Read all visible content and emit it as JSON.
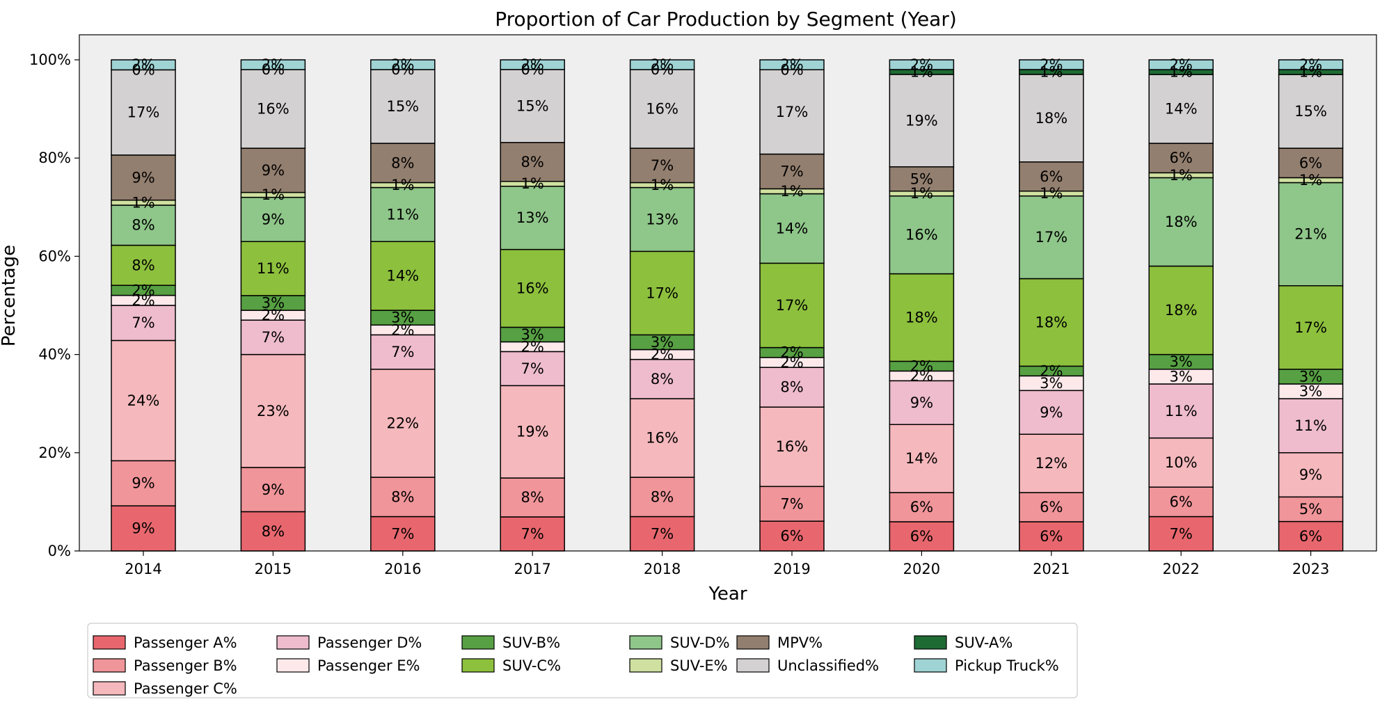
{
  "chart_data": {
    "type": "bar",
    "stacked": true,
    "title": "Proportion of Car Production by Segment (Year)",
    "xlabel": "Year",
    "ylabel": "Percentage",
    "ylim": [
      0,
      105
    ],
    "yticks": [
      "0%",
      "20%",
      "40%",
      "60%",
      "80%",
      "100%"
    ],
    "grid": false,
    "legend_position": "below",
    "categories": [
      "2014",
      "2015",
      "2016",
      "2017",
      "2018",
      "2019",
      "2020",
      "2021",
      "2022",
      "2023"
    ],
    "series": [
      {
        "name": "Passenger A%",
        "color": "#e8676e",
        "values": [
          9,
          8,
          7,
          7,
          7,
          6,
          6,
          6,
          7,
          6
        ]
      },
      {
        "name": "Passenger B%",
        "color": "#f0959a",
        "values": [
          9,
          9,
          8,
          8,
          8,
          7,
          6,
          6,
          6,
          5
        ]
      },
      {
        "name": "Passenger C%",
        "color": "#f5b8bc",
        "values": [
          24,
          23,
          22,
          19,
          16,
          16,
          14,
          12,
          10,
          9
        ]
      },
      {
        "name": "Passenger D%",
        "color": "#eebccd",
        "values": [
          7,
          7,
          7,
          7,
          8,
          8,
          9,
          9,
          11,
          11
        ]
      },
      {
        "name": "Passenger E%",
        "color": "#fde9ea",
        "values": [
          2,
          2,
          2,
          2,
          2,
          2,
          2,
          3,
          3,
          3
        ]
      },
      {
        "name": "SUV-B%",
        "color": "#57a043",
        "values": [
          2,
          3,
          3,
          3,
          3,
          2,
          2,
          2,
          3,
          3
        ]
      },
      {
        "name": "SUV-C%",
        "color": "#8dc03d",
        "values": [
          8,
          11,
          14,
          16,
          17,
          17,
          18,
          18,
          18,
          17
        ]
      },
      {
        "name": "SUV-D%",
        "color": "#8fc68a",
        "values": [
          8,
          9,
          11,
          13,
          13,
          14,
          16,
          17,
          18,
          21
        ]
      },
      {
        "name": "SUV-E%",
        "color": "#cfe0a0",
        "values": [
          1,
          1,
          1,
          1,
          1,
          1,
          1,
          1,
          1,
          1
        ]
      },
      {
        "name": "MPV%",
        "color": "#937f6f",
        "values": [
          9,
          9,
          8,
          8,
          7,
          7,
          5,
          6,
          6,
          6
        ]
      },
      {
        "name": "Unclassified%",
        "color": "#d3d1d2",
        "values": [
          17,
          16,
          15,
          15,
          16,
          17,
          19,
          18,
          14,
          15
        ]
      },
      {
        "name": "SUV-A%",
        "color": "#1e6b34",
        "values": [
          0,
          0,
          0,
          0,
          0,
          0,
          1,
          1,
          1,
          1
        ]
      },
      {
        "name": "Pickup Truck%",
        "color": "#9fd3d4",
        "values": [
          2,
          2,
          2,
          2,
          2,
          2,
          2,
          2,
          2,
          2
        ]
      }
    ],
    "data_labels": [
      [
        "9%",
        "9%",
        "24%",
        "7%",
        "2%",
        "2%",
        "8%",
        "8%",
        "1%",
        "9%",
        "17%",
        "0%",
        "2%"
      ],
      [
        "8%",
        "9%",
        "23%",
        "7%",
        "2%",
        "3%",
        "11%",
        "9%",
        "1%",
        "9%",
        "16%",
        "0%",
        "2%"
      ],
      [
        "7%",
        "8%",
        "22%",
        "7%",
        "2%",
        "3%",
        "14%",
        "11%",
        "1%",
        "8%",
        "15%",
        "0%",
        "2%"
      ],
      [
        "7%",
        "8%",
        "19%",
        "7%",
        "2%",
        "3%",
        "16%",
        "13%",
        "1%",
        "8%",
        "15%",
        "0%",
        "2%"
      ],
      [
        "7%",
        "8%",
        "16%",
        "8%",
        "2%",
        "3%",
        "17%",
        "13%",
        "1%",
        "7%",
        "16%",
        "0%",
        "2%"
      ],
      [
        "6%",
        "7%",
        "16%",
        "8%",
        "2%",
        "2%",
        "17%",
        "14%",
        "1%",
        "7%",
        "17%",
        "0%",
        "2%"
      ],
      [
        "6%",
        "6%",
        "14%",
        "9%",
        "2%",
        "2%",
        "18%",
        "16%",
        "1%",
        "5%",
        "19%",
        "1%",
        "2%"
      ],
      [
        "6%",
        "6%",
        "12%",
        "9%",
        "3%",
        "2%",
        "18%",
        "17%",
        "1%",
        "6%",
        "18%",
        "1%",
        "2%"
      ],
      [
        "7%",
        "6%",
        "10%",
        "11%",
        "3%",
        "3%",
        "18%",
        "18%",
        "1%",
        "6%",
        "14%",
        "1%",
        "2%"
      ],
      [
        "6%",
        "5%",
        "9%",
        "11%",
        "3%",
        "3%",
        "17%",
        "21%",
        "1%",
        "6%",
        "15%",
        "1%",
        "2%"
      ]
    ],
    "legend_order": [
      "Passenger A%",
      "Passenger B%",
      "Passenger C%",
      "Passenger D%",
      "Passenger E%",
      "SUV-B%",
      "SUV-C%",
      "SUV-D%",
      "SUV-E%",
      "MPV%",
      "Unclassified%",
      "SUV-A%",
      "Pickup Truck%"
    ],
    "plot_background": "#efefef"
  }
}
